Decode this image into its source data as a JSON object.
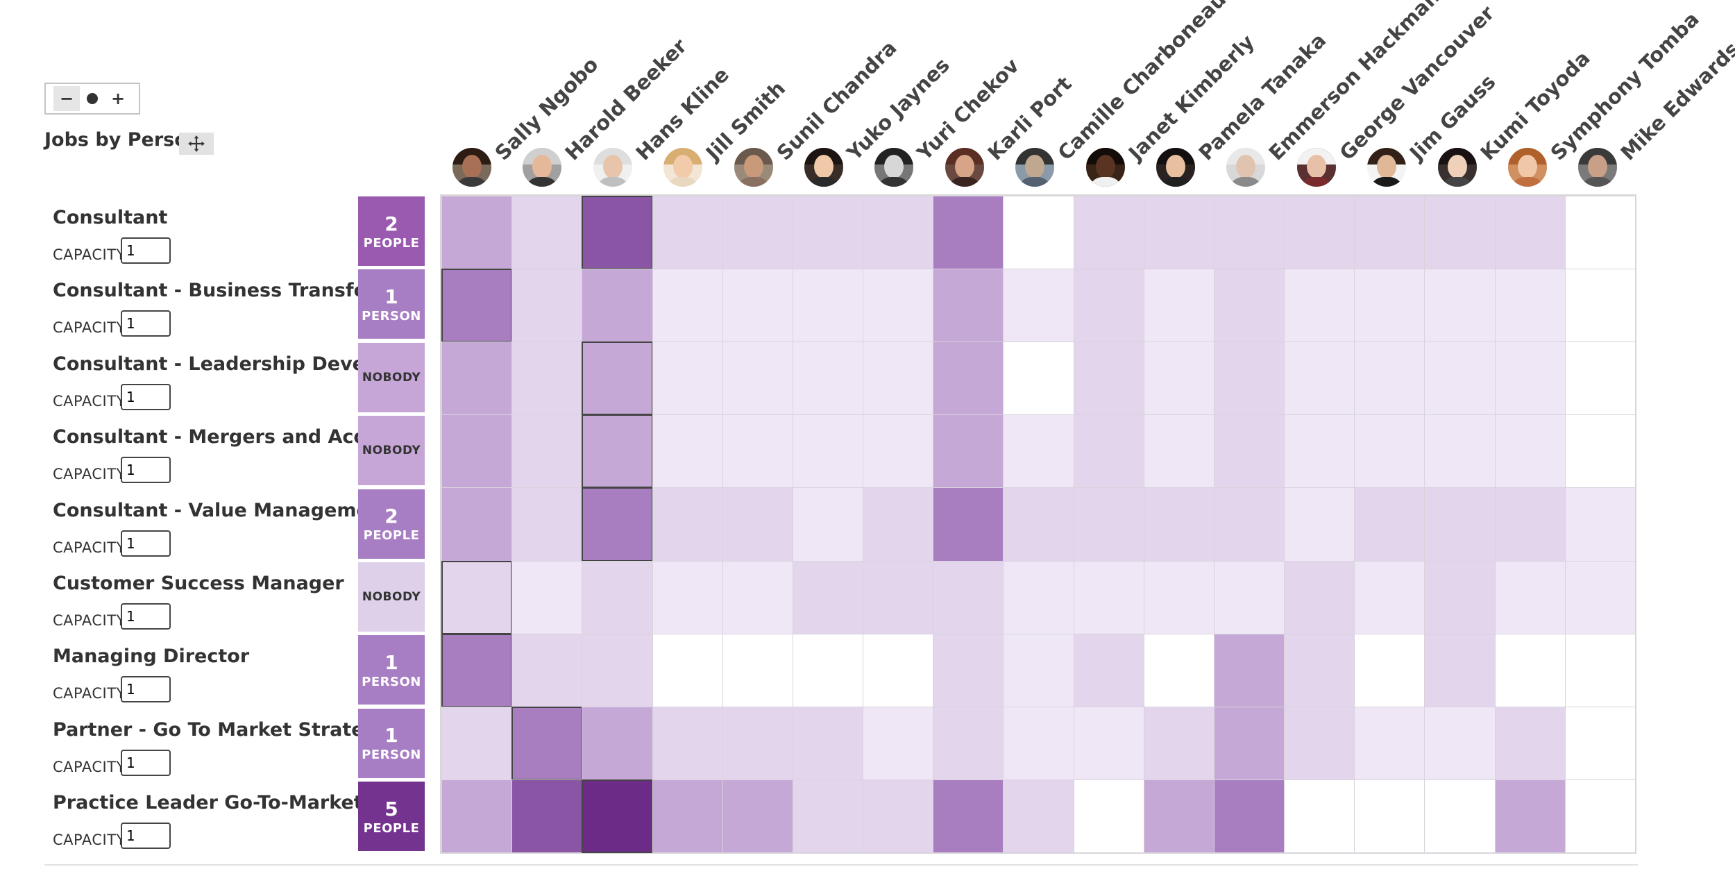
{
  "title": "Jobs by Person",
  "capacity_label": "CAPACITY",
  "people": [
    {
      "name": "Sally Ngobo",
      "avatar": {
        "skin": "#a87054",
        "hair": "#2d1c14",
        "shirt": "#3a3a3a",
        "bg": "#7a6a5a"
      }
    },
    {
      "name": "Harold Beeker",
      "avatar": {
        "skin": "#e6b89a",
        "hair": "#cfcfcf",
        "shirt": "#333333",
        "bg": "#a0a0a0"
      }
    },
    {
      "name": "Hans Kline",
      "avatar": {
        "skin": "#e8c4aa",
        "hair": "#dedede",
        "shirt": "#bfbfbf",
        "bg": "#f0f0f0"
      }
    },
    {
      "name": "Jill Smith",
      "avatar": {
        "skin": "#f2cbaa",
        "hair": "#d9ae72",
        "shirt": "#e8d8c0",
        "bg": "#f4e6d4"
      }
    },
    {
      "name": "Sunil Chandra",
      "avatar": {
        "skin": "#c89a7a",
        "hair": "#6a5a4e",
        "shirt": "#8a7060",
        "bg": "#9a8a7a"
      }
    },
    {
      "name": "Yuko Jaynes",
      "avatar": {
        "skin": "#f0caa8",
        "hair": "#1e1512",
        "shirt": "#2a2a2a",
        "bg": "#3a2c26"
      }
    },
    {
      "name": "Yuri Chekov",
      "avatar": {
        "skin": "#d7d7d7",
        "hair": "#222222",
        "shirt": "#333333",
        "bg": "#777777"
      }
    },
    {
      "name": "Karli Port",
      "avatar": {
        "skin": "#d8a488",
        "hair": "#5a2e22",
        "shirt": "#3a2420",
        "bg": "#6a4a40"
      }
    },
    {
      "name": "Camille Charboneau",
      "avatar": {
        "skin": "#c0a890",
        "hair": "#333333",
        "shirt": "#556070",
        "bg": "#8a9aa8"
      }
    },
    {
      "name": "Janet Kimberly",
      "avatar": {
        "skin": "#5a3422",
        "hair": "#140c08",
        "shirt": "#f0f0f0",
        "bg": "#3a2418"
      }
    },
    {
      "name": "Pamela Tanaka",
      "avatar": {
        "skin": "#e8c0a0",
        "hair": "#141010",
        "shirt": "#202020",
        "bg": "#2a2220"
      }
    },
    {
      "name": "Emmerson Hackman",
      "avatar": {
        "skin": "#e0c4b0",
        "hair": "#e8e8e8",
        "shirt": "#8a8a8a",
        "bg": "#d8d8d8"
      }
    },
    {
      "name": "George Vancouver",
      "avatar": {
        "skin": "#e8c0a8",
        "hair": "#f2f2f2",
        "shirt": "#7a2a2a",
        "bg": "#5a3030"
      }
    },
    {
      "name": "Jim Gauss",
      "avatar": {
        "skin": "#e0b898",
        "hair": "#332018",
        "shirt": "#1a1a1a",
        "bg": "#f4f4f4"
      }
    },
    {
      "name": "Kumi Toyoda",
      "avatar": {
        "skin": "#f0d0b8",
        "hair": "#1a1212",
        "shirt": "#444444",
        "bg": "#3a3030"
      }
    },
    {
      "name": "Symphony Tomba",
      "avatar": {
        "skin": "#f0c8a8",
        "hair": "#b0602a",
        "shirt": "#c07040",
        "bg": "#d09060"
      }
    },
    {
      "name": "Mike Edwards",
      "avatar": {
        "skin": "#c8a088",
        "hair": "#3a3a3a",
        "shirt": "#555555",
        "bg": "#7a7a7a"
      }
    }
  ],
  "jobs": [
    {
      "title": "Consultant",
      "capacity": "1",
      "count_num": "2",
      "count_unit": "PEOPLE",
      "count_color": "#9a5ab0"
    },
    {
      "title": "Consultant - Business Transfor...",
      "capacity": "1",
      "count_num": "1",
      "count_unit": "PERSON",
      "count_color": "#a77dc3"
    },
    {
      "title": "Consultant - Leadership Devel...",
      "capacity": "1",
      "count_nobody": "NOBODY",
      "count_color": "#c6a6d6"
    },
    {
      "title": "Consultant - Mergers and Acqu...",
      "capacity": "1",
      "count_nobody": "NOBODY",
      "count_color": "#c6a6d6"
    },
    {
      "title": "Consultant - Value Manageme...",
      "capacity": "1",
      "count_num": "2",
      "count_unit": "PEOPLE",
      "count_color": "#a77dc3"
    },
    {
      "title": "Customer Success Manager",
      "capacity": "1",
      "count_nobody": "NOBODY",
      "count_color": "#dfd0e9"
    },
    {
      "title": "Managing Director",
      "capacity": "1",
      "count_num": "1",
      "count_unit": "PERSON",
      "count_color": "#a77dc3"
    },
    {
      "title": "Partner - Go To Market Strateg...",
      "capacity": "1",
      "count_num": "1",
      "count_unit": "PERSON",
      "count_color": "#a77dc3"
    },
    {
      "title": "Practice Leader Go-To-Market",
      "capacity": "1",
      "count_num": "5",
      "count_unit": "PEOPLE",
      "count_color": "#74338f"
    }
  ],
  "palette": [
    "#ffffff",
    "#efe7f5",
    "#e2d5ec",
    "#c6a8d6",
    "#a87ec0",
    "#8b55a5",
    "#6c2b87"
  ],
  "matrix": [
    [
      3,
      2,
      5,
      2,
      2,
      2,
      2,
      4,
      0,
      2,
      2,
      2,
      2,
      2,
      2,
      2,
      0
    ],
    [
      4,
      2,
      3,
      1,
      1,
      1,
      1,
      3,
      1,
      2,
      1,
      2,
      1,
      1,
      1,
      1,
      0
    ],
    [
      3,
      2,
      3,
      1,
      1,
      1,
      1,
      3,
      0,
      2,
      1,
      2,
      1,
      1,
      1,
      1,
      0
    ],
    [
      3,
      2,
      3,
      1,
      1,
      1,
      1,
      3,
      1,
      2,
      1,
      2,
      1,
      1,
      1,
      1,
      0
    ],
    [
      3,
      2,
      4,
      2,
      2,
      1,
      2,
      4,
      2,
      2,
      2,
      2,
      1,
      2,
      2,
      2,
      1
    ],
    [
      2,
      1,
      2,
      1,
      1,
      2,
      2,
      2,
      1,
      1,
      1,
      1,
      2,
      1,
      2,
      1,
      1
    ],
    [
      4,
      2,
      2,
      0,
      0,
      0,
      0,
      2,
      1,
      2,
      0,
      3,
      2,
      0,
      2,
      0,
      0
    ],
    [
      2,
      4,
      3,
      2,
      2,
      2,
      1,
      2,
      1,
      1,
      2,
      3,
      2,
      1,
      1,
      2,
      0
    ],
    [
      3,
      5,
      6,
      3,
      3,
      2,
      2,
      4,
      2,
      0,
      3,
      4,
      0,
      0,
      0,
      3,
      0
    ]
  ],
  "selected": [
    [
      0,
      2
    ],
    [
      1,
      0
    ],
    [
      2,
      2
    ],
    [
      3,
      2
    ],
    [
      4,
      2
    ],
    [
      5,
      0
    ],
    [
      6,
      0
    ],
    [
      7,
      1
    ],
    [
      8,
      2
    ]
  ]
}
